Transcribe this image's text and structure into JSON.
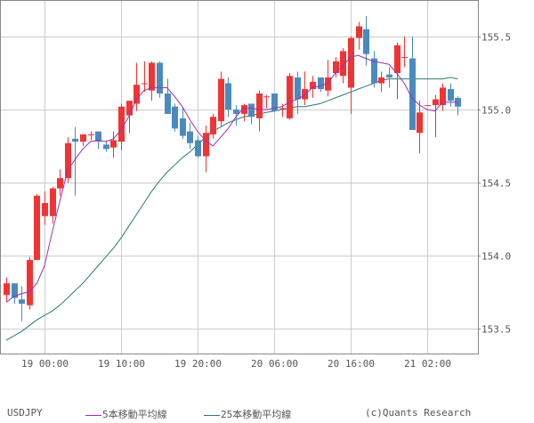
{
  "symbol": "USDJPY",
  "copyright": "(c)Quants Research",
  "legend": {
    "ma5_label": "5本移動平均線",
    "ma25_label": "25本移動平均線"
  },
  "colors": {
    "up": "#f03434",
    "down": "#4a8bbf",
    "ma5": "#9b2fb8",
    "ma25": "#2b7a72",
    "grid": "#cccccc",
    "frame": "#888888",
    "text": "#555555"
  },
  "chart_data": {
    "type": "candlestick",
    "title": "USDJPY",
    "xlabel": "",
    "ylabel": "",
    "ylim": [
      153.36,
      155.79
    ],
    "y_ticks": [
      153.5,
      154.0,
      154.5,
      155.0,
      155.5
    ],
    "y_tick_labels": [
      "153.5",
      "154.0",
      "154.5",
      "155.0",
      "155.5"
    ],
    "x_tick_labels": [
      "19 00:00",
      "19 10:00",
      "19 20:00",
      "20 06:00",
      "20 16:00",
      "21 02:00"
    ],
    "x_tick_candle_index": [
      5,
      15,
      25,
      35,
      45,
      55
    ],
    "grid": true,
    "legend_position": "bottom",
    "candles": [
      {
        "o": 153.73,
        "h": 153.85,
        "l": 153.68,
        "c": 153.81
      },
      {
        "o": 153.81,
        "h": 153.81,
        "l": 153.67,
        "c": 153.71
      },
      {
        "o": 153.7,
        "h": 153.79,
        "l": 153.55,
        "c": 153.67
      },
      {
        "o": 153.66,
        "h": 153.99,
        "l": 153.63,
        "c": 153.97
      },
      {
        "o": 153.97,
        "h": 154.42,
        "l": 153.97,
        "c": 154.41
      },
      {
        "o": 154.27,
        "h": 154.44,
        "l": 154.21,
        "c": 154.36
      },
      {
        "o": 154.27,
        "h": 154.47,
        "l": 154.22,
        "c": 154.46
      },
      {
        "o": 154.46,
        "h": 154.59,
        "l": 154.41,
        "c": 154.53
      },
      {
        "o": 154.53,
        "h": 154.81,
        "l": 154.5,
        "c": 154.77
      },
      {
        "o": 154.8,
        "h": 154.88,
        "l": 154.41,
        "c": 154.78
      },
      {
        "o": 154.78,
        "h": 154.83,
        "l": 154.75,
        "c": 154.83
      },
      {
        "o": 154.83,
        "h": 154.85,
        "l": 154.79,
        "c": 154.83
      },
      {
        "o": 154.85,
        "h": 154.85,
        "l": 154.73,
        "c": 154.78
      },
      {
        "o": 154.76,
        "h": 154.79,
        "l": 154.71,
        "c": 154.73
      },
      {
        "o": 154.74,
        "h": 154.85,
        "l": 154.67,
        "c": 154.79
      },
      {
        "o": 154.78,
        "h": 155.04,
        "l": 154.72,
        "c": 155.02
      },
      {
        "o": 154.96,
        "h": 155.05,
        "l": 154.84,
        "c": 155.06
      },
      {
        "o": 155.04,
        "h": 155.32,
        "l": 154.99,
        "c": 155.17
      },
      {
        "o": 155.18,
        "h": 155.33,
        "l": 155.12,
        "c": 155.18
      },
      {
        "o": 155.13,
        "h": 155.33,
        "l": 155.06,
        "c": 155.32
      },
      {
        "o": 155.32,
        "h": 155.33,
        "l": 155.08,
        "c": 155.11
      },
      {
        "o": 155.11,
        "h": 155.21,
        "l": 154.98,
        "c": 154.97
      },
      {
        "o": 155.02,
        "h": 155.04,
        "l": 154.85,
        "c": 154.87
      },
      {
        "o": 154.94,
        "h": 155.01,
        "l": 154.8,
        "c": 154.82
      },
      {
        "o": 154.85,
        "h": 154.91,
        "l": 154.73,
        "c": 154.77
      },
      {
        "o": 154.79,
        "h": 154.82,
        "l": 154.67,
        "c": 154.68
      },
      {
        "o": 154.68,
        "h": 154.89,
        "l": 154.57,
        "c": 154.84
      },
      {
        "o": 154.83,
        "h": 154.97,
        "l": 154.8,
        "c": 154.95
      },
      {
        "o": 154.92,
        "h": 155.26,
        "l": 154.88,
        "c": 155.21
      },
      {
        "o": 155.18,
        "h": 155.22,
        "l": 154.95,
        "c": 155.0
      },
      {
        "o": 155.0,
        "h": 155.03,
        "l": 154.89,
        "c": 154.97
      },
      {
        "o": 154.97,
        "h": 155.04,
        "l": 154.92,
        "c": 155.03
      },
      {
        "o": 155.04,
        "h": 155.04,
        "l": 154.9,
        "c": 154.95
      },
      {
        "o": 154.94,
        "h": 155.13,
        "l": 154.85,
        "c": 155.11
      },
      {
        "o": 155.09,
        "h": 155.1,
        "l": 155.01,
        "c": 155.09
      },
      {
        "o": 155.11,
        "h": 155.11,
        "l": 154.98,
        "c": 154.99
      },
      {
        "o": 155.01,
        "h": 155.04,
        "l": 154.95,
        "c": 155.01
      },
      {
        "o": 154.94,
        "h": 155.25,
        "l": 154.93,
        "c": 155.23
      },
      {
        "o": 155.22,
        "h": 155.26,
        "l": 154.97,
        "c": 155.07
      },
      {
        "o": 155.07,
        "h": 155.26,
        "l": 155.03,
        "c": 155.14
      },
      {
        "o": 155.14,
        "h": 155.23,
        "l": 155.08,
        "c": 155.19
      },
      {
        "o": 155.22,
        "h": 155.21,
        "l": 155.12,
        "c": 155.14
      },
      {
        "o": 155.13,
        "h": 155.34,
        "l": 155.09,
        "c": 155.22
      },
      {
        "o": 155.25,
        "h": 155.36,
        "l": 155.22,
        "c": 155.33
      },
      {
        "o": 155.23,
        "h": 155.42,
        "l": 155.18,
        "c": 155.4
      },
      {
        "o": 155.15,
        "h": 155.5,
        "l": 154.97,
        "c": 155.49
      },
      {
        "o": 155.49,
        "h": 155.6,
        "l": 155.41,
        "c": 155.57
      },
      {
        "o": 155.55,
        "h": 155.64,
        "l": 155.3,
        "c": 155.38
      },
      {
        "o": 155.35,
        "h": 155.4,
        "l": 155.15,
        "c": 155.18
      },
      {
        "o": 155.18,
        "h": 155.26,
        "l": 155.12,
        "c": 155.22
      },
      {
        "o": 155.24,
        "h": 155.29,
        "l": 155.15,
        "c": 155.22
      },
      {
        "o": 155.25,
        "h": 155.46,
        "l": 155.07,
        "c": 155.44
      },
      {
        "o": 155.36,
        "h": 155.5,
        "l": 155.29,
        "c": 155.36
      },
      {
        "o": 155.35,
        "h": 155.5,
        "l": 154.87,
        "c": 154.86
      },
      {
        "o": 154.84,
        "h": 155.06,
        "l": 154.7,
        "c": 154.98
      },
      {
        "o": 155.03,
        "h": 155.03,
        "l": 155.03,
        "c": 155.03
      },
      {
        "o": 155.03,
        "h": 155.1,
        "l": 154.81,
        "c": 155.07
      },
      {
        "o": 155.03,
        "h": 155.18,
        "l": 154.99,
        "c": 155.15
      },
      {
        "o": 155.14,
        "h": 155.18,
        "l": 155.02,
        "c": 155.06
      },
      {
        "o": 155.08,
        "h": 155.09,
        "l": 154.96,
        "c": 155.02
      }
    ],
    "series": [
      {
        "name": "5本移動平均線",
        "values": [
          153.68,
          153.72,
          153.74,
          153.75,
          153.81,
          153.93,
          154.16,
          154.37,
          154.58,
          154.66,
          154.73,
          154.78,
          154.79,
          154.78,
          154.8,
          154.86,
          154.95,
          155.07,
          155.13,
          155.15,
          155.15,
          155.15,
          155.09,
          155.02,
          154.93,
          154.85,
          154.79,
          154.75,
          154.81,
          154.87,
          154.95,
          155.01,
          155.01,
          155.0,
          155.0,
          155.01,
          155.02,
          155.05,
          155.07,
          155.1,
          155.15,
          155.16,
          155.18,
          155.25,
          155.3,
          155.36,
          155.37,
          155.35,
          155.33,
          155.32,
          155.31,
          155.25,
          155.18,
          155.08,
          155.03,
          155.0,
          154.99,
          155.05,
          155.05,
          155.05
        ]
      },
      {
        "name": "25本移動平均線",
        "values": [
          153.42,
          153.45,
          153.48,
          153.52,
          153.56,
          153.59,
          153.62,
          153.66,
          153.71,
          153.76,
          153.81,
          153.87,
          153.93,
          153.99,
          154.05,
          154.12,
          154.2,
          154.28,
          154.36,
          154.44,
          154.51,
          154.57,
          154.62,
          154.67,
          154.71,
          154.76,
          154.81,
          154.85,
          154.88,
          154.91,
          154.93,
          154.95,
          154.96,
          154.97,
          154.98,
          154.99,
          155.0,
          155.01,
          155.02,
          155.02,
          155.03,
          155.04,
          155.06,
          155.08,
          155.1,
          155.12,
          155.14,
          155.16,
          155.18,
          155.2,
          155.21,
          155.21,
          155.21,
          155.21,
          155.21,
          155.21,
          155.21,
          155.21,
          155.22,
          155.21
        ]
      }
    ]
  }
}
